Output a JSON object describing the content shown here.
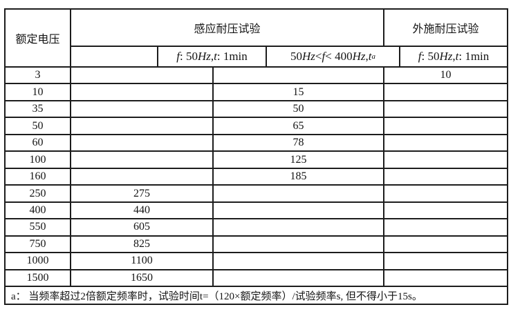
{
  "colors": {
    "border": "#1c1c1c",
    "text": "#141414",
    "background": "#ffffff"
  },
  "table": {
    "header": {
      "rated_voltage": "额定电压",
      "induced_test": "感应耐压试验",
      "applied_test": "外施耐压试验"
    },
    "subheader": {
      "induced_blank": "",
      "induced_50hz": {
        "segments": [
          {
            "t": "f",
            "i": true
          },
          {
            "t": " : 50"
          },
          {
            "t": "Hz",
            "i": true
          },
          {
            "t": ","
          },
          {
            "t": "t",
            "i": true
          },
          {
            "t": " : 1min"
          }
        ]
      },
      "induced_variable": {
        "segments": [
          {
            "t": "50"
          },
          {
            "t": "Hz",
            "i": true
          },
          {
            "t": " < "
          },
          {
            "t": "f",
            "i": true
          },
          {
            "t": " < 400"
          },
          {
            "t": "Hz",
            "i": true
          },
          {
            "t": ","
          },
          {
            "t": "t",
            "i": true
          },
          {
            "t": "a",
            "i": true,
            "sup": true
          }
        ]
      },
      "applied_50hz": {
        "segments": [
          {
            "t": "f",
            "i": true
          },
          {
            "t": " : 50"
          },
          {
            "t": "Hz",
            "i": true
          },
          {
            "t": ","
          },
          {
            "t": "t",
            "i": true
          },
          {
            "t": " : 1min"
          }
        ]
      }
    },
    "rows": [
      {
        "rated": "3",
        "induced_50": "",
        "induced_var": "",
        "applied": "10"
      },
      {
        "rated": "10",
        "induced_50": "",
        "induced_var": "15",
        "applied": ""
      },
      {
        "rated": "35",
        "induced_50": "",
        "induced_var": "50",
        "applied": ""
      },
      {
        "rated": "50",
        "induced_50": "",
        "induced_var": "65",
        "applied": ""
      },
      {
        "rated": "60",
        "induced_50": "",
        "induced_var": "78",
        "applied": ""
      },
      {
        "rated": "100",
        "induced_50": "",
        "induced_var": "125",
        "applied": ""
      },
      {
        "rated": "160",
        "induced_50": "",
        "induced_var": "185",
        "applied": ""
      },
      {
        "rated": "250",
        "induced_50": "275",
        "induced_var": "",
        "applied": ""
      },
      {
        "rated": "400",
        "induced_50": "440",
        "induced_var": "",
        "applied": ""
      },
      {
        "rated": "550",
        "induced_50": "605",
        "induced_var": "",
        "applied": ""
      },
      {
        "rated": "750",
        "induced_50": "825",
        "induced_var": "",
        "applied": ""
      },
      {
        "rated": "1000",
        "induced_50": "1100",
        "induced_var": "",
        "applied": ""
      },
      {
        "rated": "1500",
        "induced_50": "1650",
        "induced_var": "",
        "applied": ""
      }
    ],
    "footnote": "a： 当频率超过2倍额定频率时，试验时间t=（120×额定频率）/试验频率s, 但不得小于15s。"
  }
}
